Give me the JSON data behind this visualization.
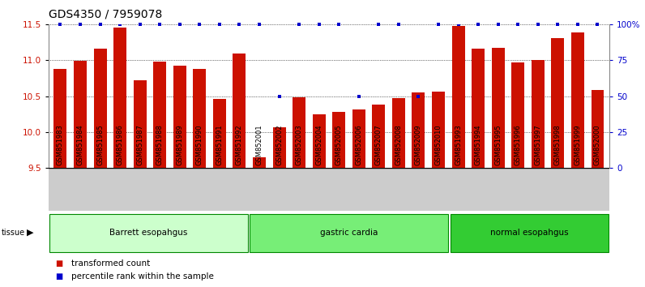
{
  "title": "GDS4350 / 7959078",
  "samples": [
    "GSM851983",
    "GSM851984",
    "GSM851985",
    "GSM851986",
    "GSM851987",
    "GSM851988",
    "GSM851989",
    "GSM851990",
    "GSM851991",
    "GSM851992",
    "GSM852001",
    "GSM852002",
    "GSM852003",
    "GSM852004",
    "GSM852005",
    "GSM852006",
    "GSM852007",
    "GSM852008",
    "GSM852009",
    "GSM852010",
    "GSM851993",
    "GSM851994",
    "GSM851995",
    "GSM851996",
    "GSM851997",
    "GSM851998",
    "GSM851999",
    "GSM852000"
  ],
  "values": [
    10.88,
    10.99,
    11.16,
    11.46,
    10.72,
    10.98,
    10.93,
    10.88,
    10.46,
    11.09,
    9.65,
    10.07,
    10.48,
    10.25,
    10.28,
    10.32,
    10.38,
    10.47,
    10.55,
    10.56,
    11.48,
    11.16,
    11.17,
    10.97,
    11.0,
    11.31,
    11.39,
    10.59
  ],
  "percentile_high": [
    true,
    true,
    true,
    false,
    true,
    true,
    true,
    true,
    true,
    true,
    true,
    false,
    true,
    true,
    true,
    false,
    true,
    true,
    false,
    true,
    false,
    true,
    true,
    true,
    true,
    true,
    true,
    true
  ],
  "percentile_vals": [
    100,
    100,
    100,
    100,
    100,
    100,
    100,
    100,
    100,
    100,
    100,
    50,
    100,
    100,
    100,
    50,
    100,
    100,
    50,
    100,
    100,
    100,
    100,
    100,
    100,
    100,
    100,
    100
  ],
  "groups": [
    {
      "label": "Barrett esopahgus",
      "start": 0,
      "end": 10,
      "color": "#ccffcc"
    },
    {
      "label": "gastric cardia",
      "start": 10,
      "end": 20,
      "color": "#77ee77"
    },
    {
      "label": "normal esopahgus",
      "start": 20,
      "end": 28,
      "color": "#33cc33"
    }
  ],
  "bar_color": "#cc1100",
  "dot_color": "#0000cc",
  "ymin": 9.5,
  "ymax": 11.5,
  "yticks": [
    9.5,
    10.0,
    10.5,
    11.0,
    11.5
  ],
  "right_yticks": [
    0,
    25,
    50,
    75,
    100
  ],
  "right_ytick_labels": [
    "0",
    "25",
    "50",
    "75",
    "100%"
  ],
  "title_fontsize": 10,
  "tick_label_fontsize": 6.0,
  "xtick_bg_color": "#cccccc",
  "group_box_border": "#008800",
  "tissue_label": "tissue",
  "legend_items": [
    {
      "color": "#cc1100",
      "label": "transformed count"
    },
    {
      "color": "#0000cc",
      "label": "percentile rank within the sample"
    }
  ]
}
